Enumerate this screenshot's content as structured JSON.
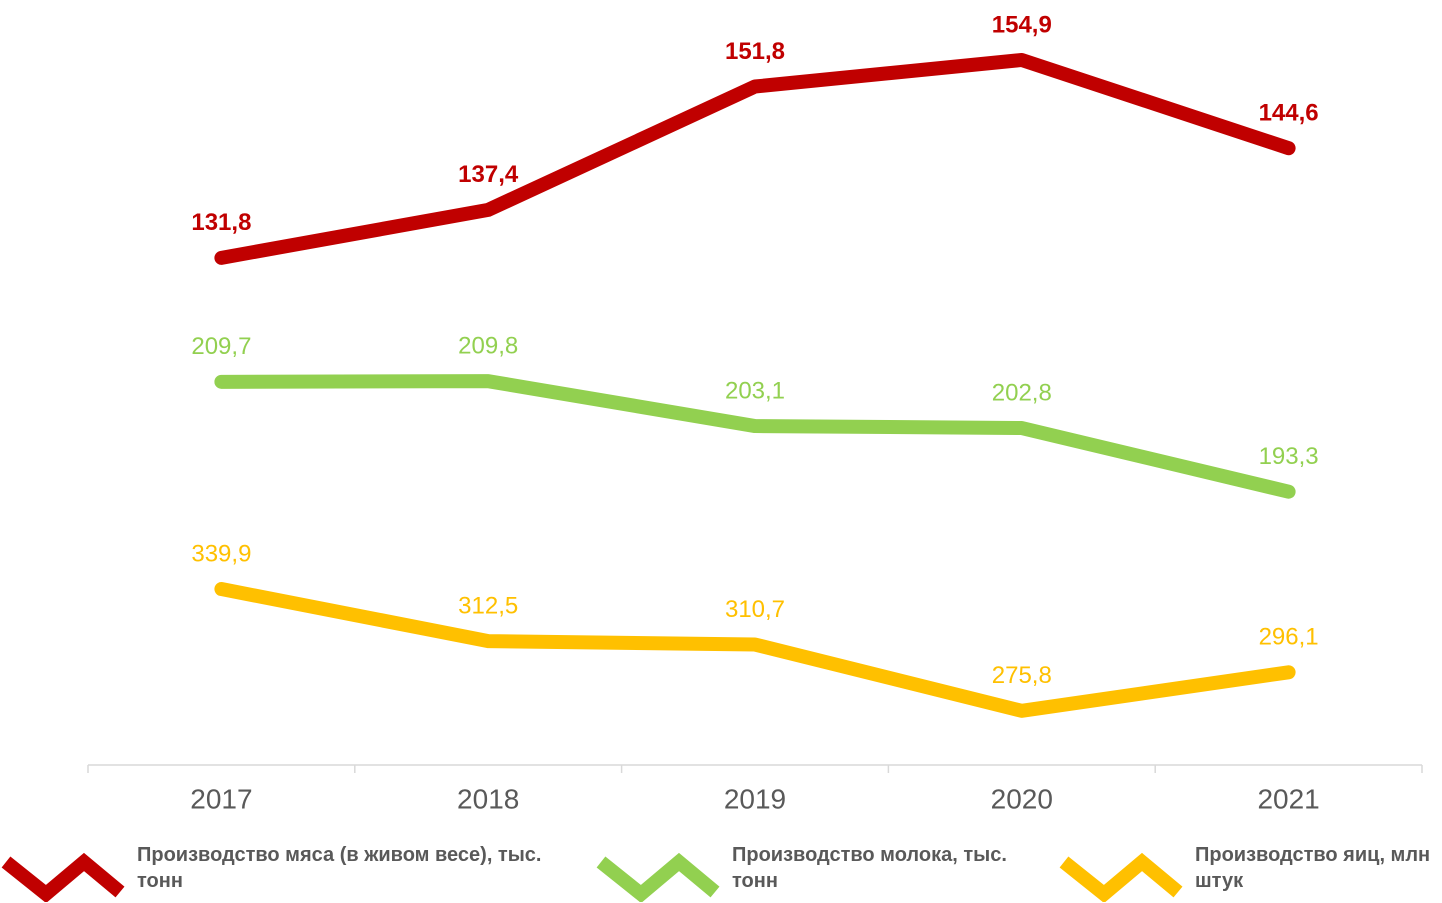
{
  "chart_data": {
    "type": "line",
    "categories": [
      "2017",
      "2018",
      "2019",
      "2020",
      "2021"
    ],
    "series": [
      {
        "name": "Производство мяса (в живом весе), тыс. тонн",
        "color": "#c00000",
        "bold": true,
        "values": [
          131.8,
          137.4,
          151.8,
          154.9,
          144.6
        ],
        "value_labels": [
          "131,8",
          "137,4",
          "151,8",
          "154,9",
          "144,6"
        ],
        "ylim": [
          72.6,
          161.9
        ]
      },
      {
        "name": "Производство молока, тыс. тонн",
        "color": "#92d050",
        "bold": false,
        "values": [
          209.7,
          209.8,
          203.1,
          202.8,
          193.3
        ],
        "value_labels": [
          "209,7",
          "209,8",
          "203,1",
          "202,8",
          "193,3"
        ],
        "ylim": [
          152.5,
          266.7
        ]
      },
      {
        "name": "Производство яиц, млн штук",
        "color": "#ffc000",
        "bold": false,
        "values": [
          339.9,
          312.5,
          310.7,
          275.8,
          296.1
        ],
        "value_labels": [
          "339,9",
          "312,5",
          "310,7",
          "275,8",
          "296,1"
        ],
        "ylim": [
          247.3,
          649.9
        ]
      }
    ]
  }
}
